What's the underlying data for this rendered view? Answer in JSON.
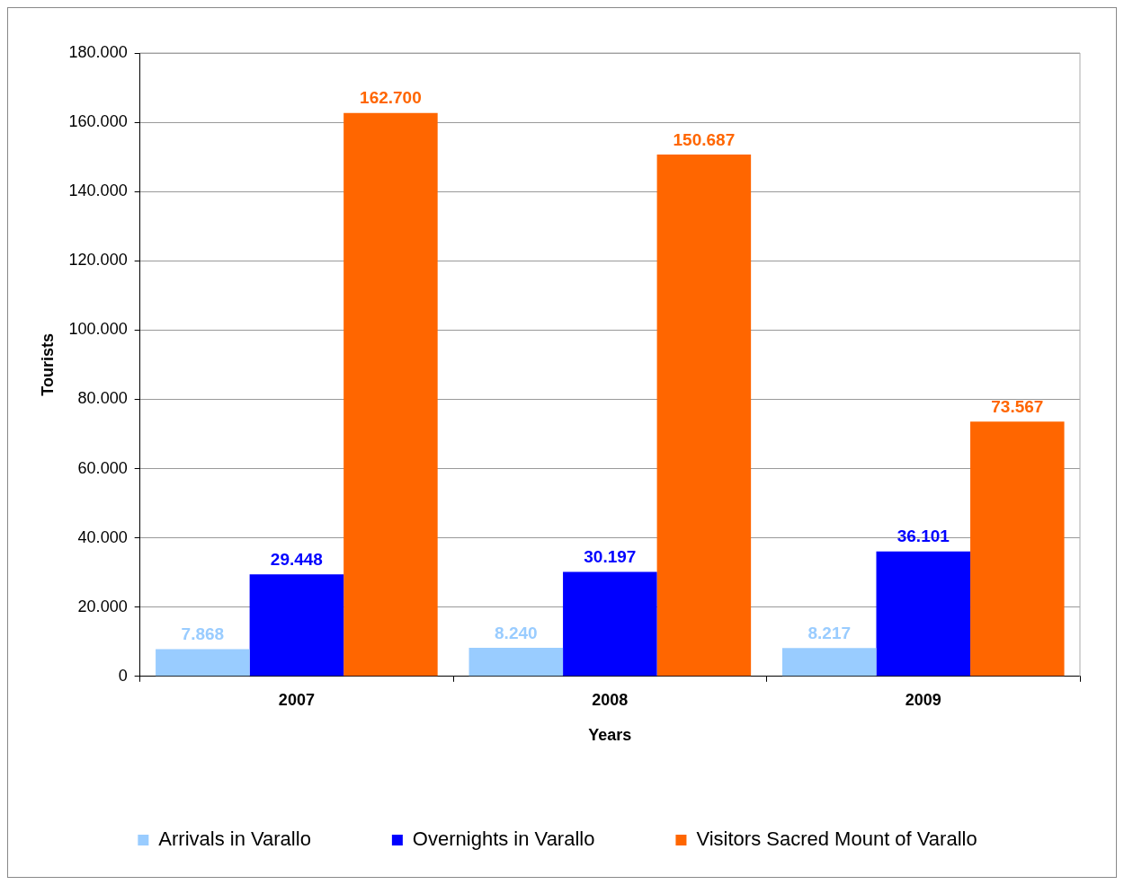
{
  "chart_data": {
    "type": "bar",
    "xlabel": "Years",
    "ylabel": "Tourists",
    "categories": [
      "2007",
      "2008",
      "2009"
    ],
    "series": [
      {
        "name": "Arrivals in Varallo",
        "color": "#99ccff",
        "values": [
          7868,
          8240,
          8217
        ],
        "value_labels": [
          "7.868",
          "8.240",
          "8.217"
        ]
      },
      {
        "name": "Overnights in Varallo",
        "color": "#0000ff",
        "values": [
          29448,
          30197,
          36101
        ],
        "value_labels": [
          "29.448",
          "30.197",
          "36.101"
        ]
      },
      {
        "name": "Visitors Sacred Mount of Varallo",
        "color": "#ff6600",
        "values": [
          162700,
          150687,
          73567
        ],
        "value_labels": [
          "162.700",
          "150.687",
          "73.567"
        ]
      }
    ],
    "ylim": [
      0,
      180000
    ],
    "yticks": [
      0,
      {
        "value": 20000,
        "label": "20.000"
      },
      {
        "value": 40000,
        "label": "40.000"
      },
      {
        "value": 60000,
        "label": "60.000"
      },
      {
        "value": 80000,
        "label": "80.000"
      },
      {
        "value": 100000,
        "label": "100.000"
      },
      {
        "value": 120000,
        "label": "120.000"
      },
      {
        "value": 140000,
        "label": "140.000"
      },
      {
        "value": 160000,
        "label": "160.000"
      },
      {
        "value": 180000,
        "label": "180.000"
      }
    ],
    "grid": "y",
    "legend": "bottom"
  }
}
